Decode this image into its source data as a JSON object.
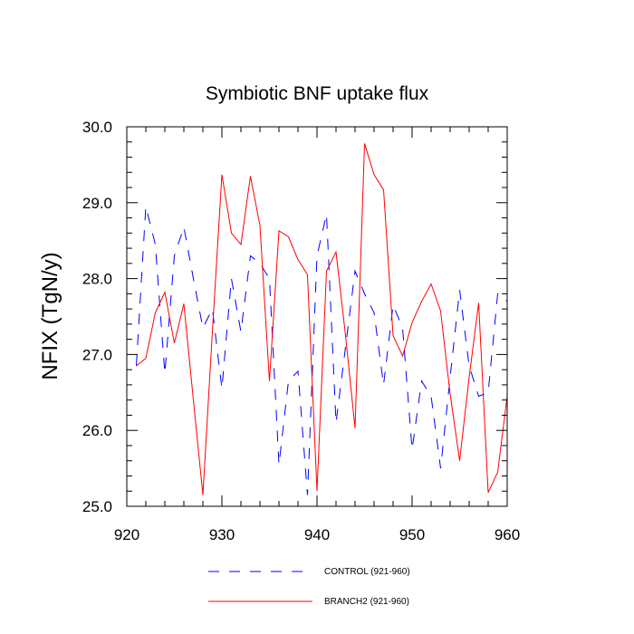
{
  "chart_data": {
    "type": "line",
    "title": "Symbiotic BNF uptake flux",
    "ylabel": "NFIX  (TgN/y)",
    "xlabel": "",
    "xlim": [
      920,
      960
    ],
    "ylim": [
      25.0,
      30.0
    ],
    "xticks": [
      920,
      930,
      940,
      950,
      960
    ],
    "xtick_labels": [
      "920",
      "930",
      "940",
      "950",
      "960"
    ],
    "yticks": [
      25.0,
      26.0,
      27.0,
      28.0,
      29.0,
      30.0
    ],
    "ytick_labels": [
      "25.0",
      "26.0",
      "27.0",
      "28.0",
      "29.0",
      "30.0"
    ],
    "grid": false,
    "legend_position": "bottom",
    "x": [
      921,
      922,
      923,
      924,
      925,
      926,
      927,
      928,
      929,
      930,
      931,
      932,
      933,
      934,
      935,
      936,
      937,
      938,
      939,
      940,
      941,
      942,
      943,
      944,
      945,
      946,
      947,
      948,
      949,
      950,
      951,
      952,
      953,
      954,
      955,
      956,
      957,
      958,
      959,
      960
    ],
    "series": [
      {
        "name": "CONTROL (921-960)",
        "color": "#0000ff",
        "dash": "dashed",
        "values": [
          26.85,
          28.95,
          28.45,
          26.75,
          28.3,
          28.68,
          28.0,
          27.35,
          27.6,
          26.55,
          28.0,
          27.3,
          28.3,
          28.2,
          28.0,
          25.55,
          26.65,
          26.78,
          25.15,
          28.3,
          28.85,
          26.1,
          27.1,
          28.1,
          27.8,
          27.55,
          26.6,
          27.65,
          27.35,
          25.75,
          26.65,
          26.45,
          25.5,
          26.7,
          27.85,
          26.85,
          26.45,
          26.5,
          27.8,
          27.7
        ]
      },
      {
        "name": "BRANCH2 (921-960)",
        "color": "#ff0000",
        "dash": "solid",
        "values": [
          26.85,
          26.95,
          27.55,
          27.82,
          27.15,
          27.67,
          26.4,
          25.15,
          27.3,
          29.37,
          28.6,
          28.45,
          29.35,
          28.7,
          26.65,
          28.63,
          28.55,
          28.25,
          28.05,
          25.2,
          28.1,
          28.35,
          27.25,
          26.03,
          29.78,
          29.37,
          29.17,
          27.25,
          26.98,
          27.42,
          27.7,
          27.93,
          27.57,
          26.48,
          25.6,
          26.7,
          27.68,
          25.18,
          25.45,
          26.45
        ]
      }
    ]
  }
}
